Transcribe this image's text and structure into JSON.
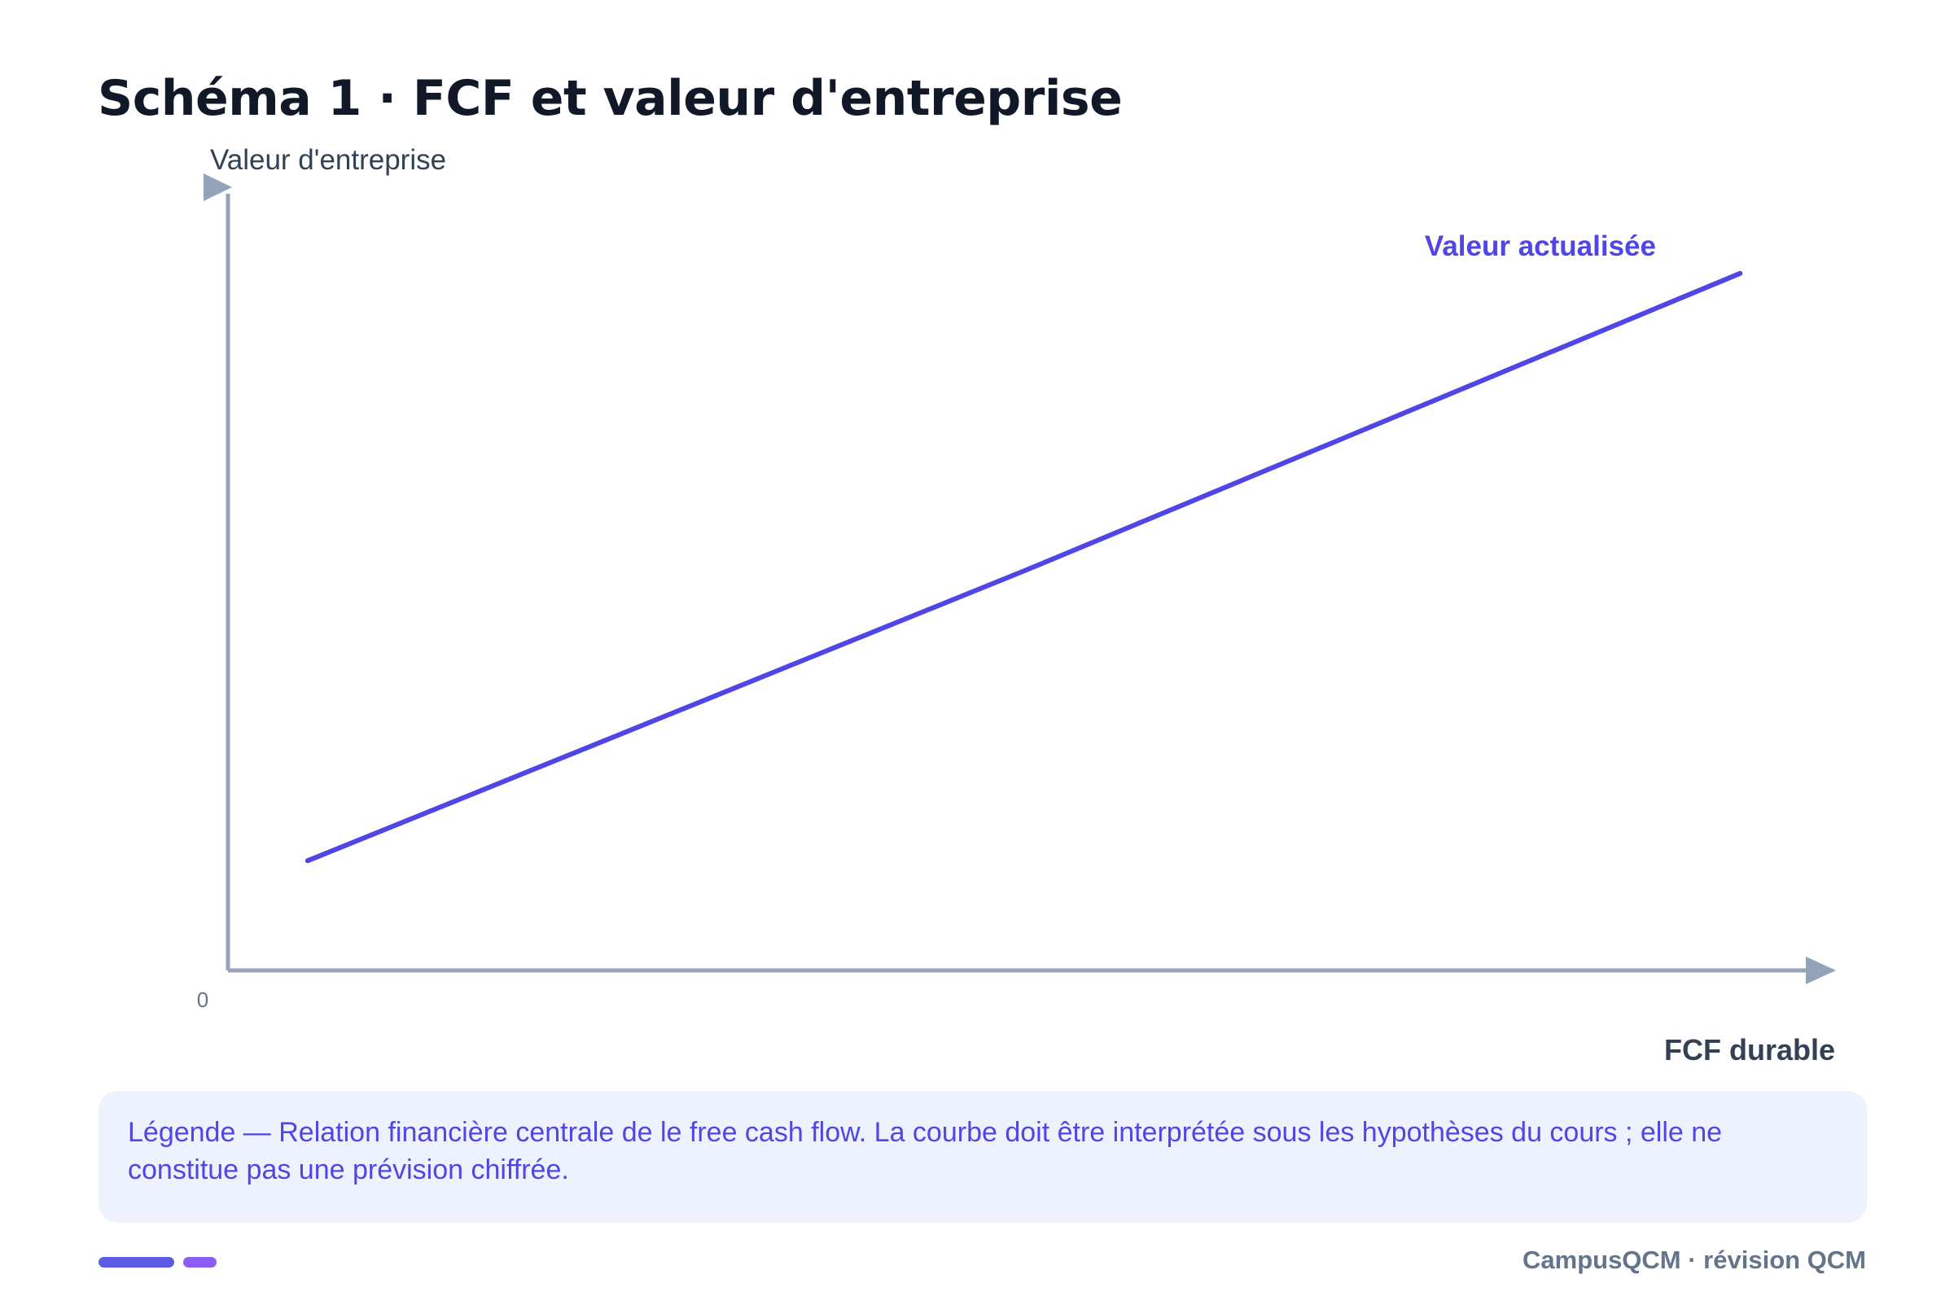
{
  "header": {
    "title": "Schéma 1 · FCF et valeur d'entreprise"
  },
  "chart_data": {
    "type": "line",
    "ylabel": "Valeur d'entreprise",
    "xlabel": "FCF durable",
    "origin_label": "0",
    "series": [
      {
        "name": "Valeur actualisée",
        "x": [
          0.05,
          0.5,
          0.95
        ],
        "values": [
          0.14,
          0.51,
          0.89
        ]
      }
    ],
    "xlim": [
      0,
      1
    ],
    "ylim": [
      0,
      1
    ],
    "grid": false,
    "legend": "inline label at end of line",
    "colors": {
      "series": "#4f46e5",
      "axis": "#94a3b8"
    }
  },
  "caption": {
    "text": "Légende — Relation financière centrale de le free cash flow. La courbe doit être interprétée sous les hypothèses du cours ; elle ne constitue pas une prévision chiffrée."
  },
  "footer": {
    "brand": "CampusQCM · révision QCM"
  }
}
